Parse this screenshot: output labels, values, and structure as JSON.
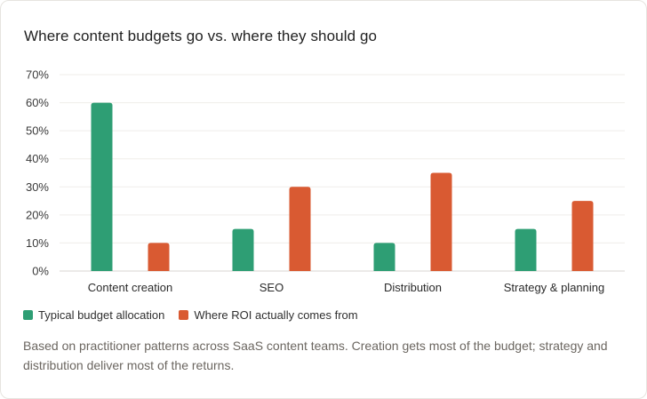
{
  "title": "Where content budgets go vs. where they should go",
  "chart_data": {
    "type": "bar",
    "categories": [
      "Content creation",
      "SEO",
      "Distribution",
      "Strategy & planning"
    ],
    "series": [
      {
        "name": "Typical budget allocation",
        "color": "#2e9e74",
        "values": [
          60,
          15,
          10,
          15
        ]
      },
      {
        "name": "Where ROI actually comes from",
        "color": "#d95a32",
        "values": [
          10,
          30,
          35,
          25
        ]
      }
    ],
    "yticks": [
      "0%",
      "10%",
      "20%",
      "30%",
      "40%",
      "50%",
      "60%",
      "70%"
    ],
    "ylim": [
      0,
      70
    ],
    "grid": true,
    "legend_position": "bottom-left"
  },
  "note": "Based on practitioner patterns across SaaS content teams. Creation gets most of the budget; strategy and distribution deliver most of the returns."
}
